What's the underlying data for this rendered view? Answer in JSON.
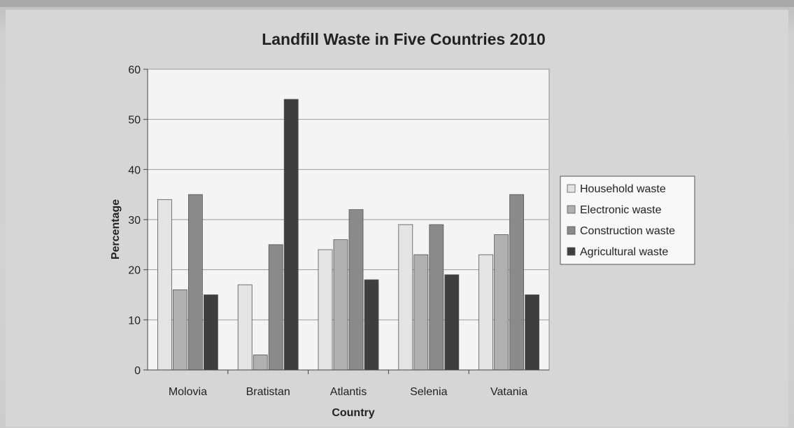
{
  "colors": {
    "household": "#e4e4e4",
    "electronic": "#b0b0b0",
    "construction": "#8a8a8a",
    "agricultural": "#3e3e3e"
  },
  "chart_data": {
    "type": "bar",
    "title": "Landfill Waste in Five Countries 2010",
    "xlabel": "Country",
    "ylabel": "Percentage",
    "ylim": [
      0,
      60
    ],
    "yticks": [
      0,
      10,
      20,
      30,
      40,
      50,
      60
    ],
    "grid": true,
    "legend_position": "right",
    "categories": [
      "Molovia",
      "Bratistan",
      "Atlantis",
      "Selenia",
      "Vatania"
    ],
    "series": [
      {
        "name": "Household waste",
        "color_key": "household",
        "values": [
          34,
          17,
          24,
          29,
          23
        ]
      },
      {
        "name": "Electronic waste",
        "color_key": "electronic",
        "values": [
          16,
          3,
          26,
          23,
          27
        ]
      },
      {
        "name": "Construction waste",
        "color_key": "construction",
        "values": [
          35,
          25,
          32,
          29,
          35
        ]
      },
      {
        "name": "Agricultural waste",
        "color_key": "agricultural",
        "values": [
          15,
          54,
          18,
          19,
          15
        ]
      }
    ]
  }
}
